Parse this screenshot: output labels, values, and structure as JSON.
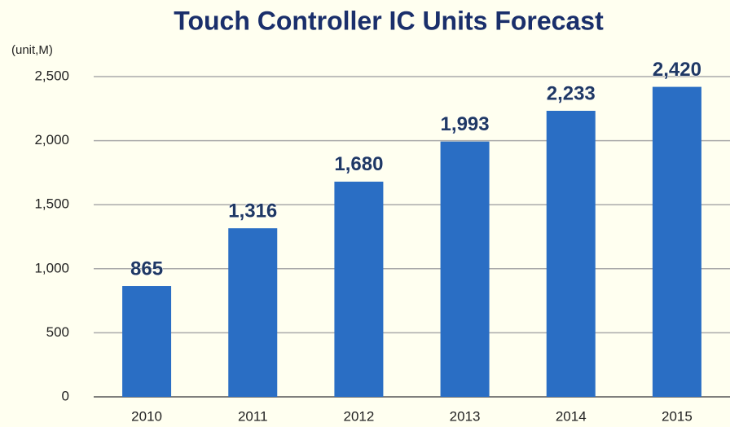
{
  "chart_data": {
    "type": "bar",
    "title": "Touch Controller IC Units Forecast",
    "y_label": "(unit,M)",
    "categories": [
      "2010",
      "2011",
      "2012",
      "2013",
      "2014",
      "2015"
    ],
    "values": [
      865,
      1316,
      1680,
      1993,
      2233,
      2420
    ],
    "value_labels": [
      "865",
      "1,316",
      "1,680",
      "1,993",
      "2,233",
      "2,420"
    ],
    "color": "#2a6ec4",
    "ylim": [
      0,
      2500
    ],
    "yticks": [
      0,
      500,
      {
        "value": 1000,
        "label": "1,000"
      },
      {
        "value": 1500,
        "label": "1,500"
      },
      {
        "value": 2000,
        "label": "2,000"
      },
      {
        "value": 2500,
        "label": "2,500"
      }
    ],
    "grid": true
  }
}
